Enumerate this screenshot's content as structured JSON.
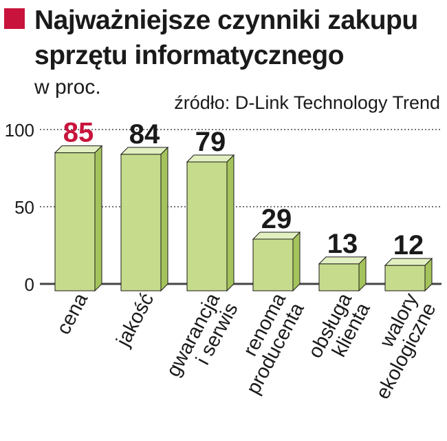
{
  "header": {
    "title": "Najważniejsze czynniki zakupu sprzętu informatycznego",
    "subtitle": "w proc.",
    "source": "źródło: D-Link Technology Trend"
  },
  "colors": {
    "accent": "#c8143c",
    "bar_front": "#c6dc8c",
    "bar_top": "#e2efc0",
    "bar_side": "#a5c35c",
    "bar_outline": "#1a1a1a",
    "grid": "#444444",
    "text": "#1a1a1a"
  },
  "chart_data": {
    "type": "bar",
    "categories": [
      [
        "cena"
      ],
      [
        "jakość"
      ],
      [
        "gwarancja",
        "i serwis"
      ],
      [
        "renoma",
        "producenta"
      ],
      [
        "obsługa",
        "klienta"
      ],
      [
        "walory",
        "ekologiczne"
      ]
    ],
    "values": [
      85,
      84,
      79,
      29,
      13,
      12
    ],
    "value_label_colors": [
      "#c8143c",
      "#1a1a1a",
      "#1a1a1a",
      "#1a1a1a",
      "#1a1a1a",
      "#1a1a1a"
    ],
    "yticks": [
      0,
      50,
      100
    ],
    "ylim": [
      0,
      100
    ],
    "grid": true
  }
}
